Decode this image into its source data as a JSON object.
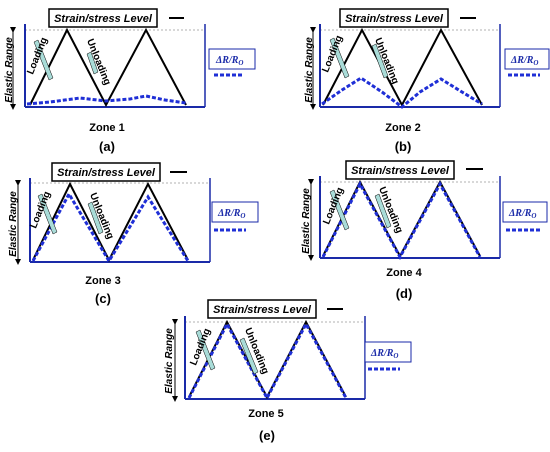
{
  "panels": [
    {
      "id": "a",
      "title": "Strain/stress Level",
      "side_label": "Elastic Range",
      "loading_label": "Loading",
      "unloading_label": "Unloading",
      "legend_label": "ΔR/R",
      "legend_sub": "O",
      "zone_label": "Zone 1",
      "caption": "(a)"
    },
    {
      "id": "b",
      "title": "Strain/stress Level",
      "side_label": "Elastic Range",
      "loading_label": "Loading",
      "unloading_label": "Unloading",
      "legend_label": "ΔR/R",
      "legend_sub": "O",
      "zone_label": "Zone 2",
      "caption": "(b)"
    },
    {
      "id": "c",
      "title": "Strain/stress Level",
      "side_label": "Elastic Range",
      "loading_label": "Loading",
      "unloading_label": "Unloading",
      "legend_label": "ΔR/R",
      "legend_sub": "O",
      "zone_label": "Zone 3",
      "caption": "(c)"
    },
    {
      "id": "d",
      "title": "Strain/stress Level",
      "side_label": "Elastic Range",
      "loading_label": "Loading",
      "unloading_label": "Unloading",
      "legend_label": "ΔR/R",
      "legend_sub": "O",
      "zone_label": "Zone 4",
      "caption": "(d)"
    },
    {
      "id": "e",
      "title": "Strain/stress Level",
      "side_label": "Elastic Range",
      "loading_label": "Loading",
      "unloading_label": "Unloading",
      "legend_label": "ΔR/R",
      "legend_sub": "O",
      "zone_label": "Zone 5",
      "caption": "(e)"
    }
  ],
  "colors": {
    "axis": "#1a2aa8",
    "strain_line": "#000000",
    "response_line": "#1f2fd6",
    "arrow_fill": "#a9dcd8"
  }
}
